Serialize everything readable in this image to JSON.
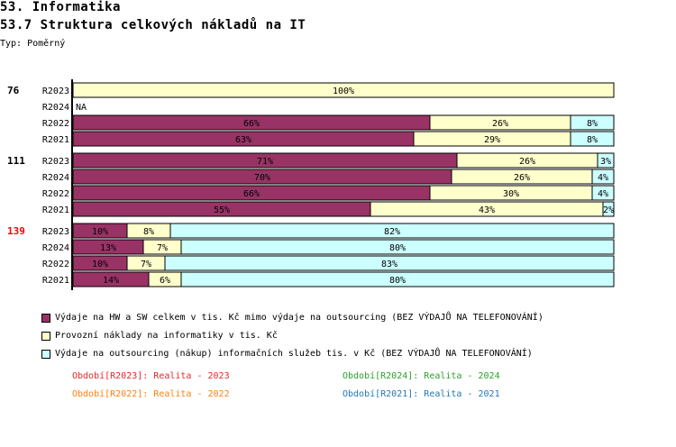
{
  "header": {
    "section": "53. Informatika",
    "title": "53.7 Struktura celkových nákladů na IT",
    "type": "Typ: Poměrný"
  },
  "chart_data": {
    "type": "bar",
    "stacked": "percent",
    "orientation": "horizontal",
    "colors": [
      "#993366",
      "#ffffcc",
      "#ccffff"
    ],
    "series_names": [
      "Výdaje na HW a SW celkem v tis. Kč mimo výdaje na outsourcing (BEZ VÝDAJŮ NA TELEFONOVÁNÍ)",
      "Provozní náklady na informatiky v tis. Kč",
      "Výdaje na outsourcing (nákup) informačních služeb tis. v Kč (BEZ VÝDAJŮ NA TELEFONOVÁNÍ)"
    ],
    "groups": [
      {
        "label": "76",
        "label_color": "#000000",
        "rows": [
          {
            "period": "R2023",
            "values": [
              0,
              100,
              0
            ]
          },
          {
            "period": "R2024",
            "values": null,
            "text": "NA"
          },
          {
            "period": "R2022",
            "values": [
              66,
              26,
              8
            ]
          },
          {
            "period": "R2021",
            "values": [
              63,
              29,
              8
            ]
          }
        ]
      },
      {
        "label": "111",
        "label_color": "#000000",
        "rows": [
          {
            "period": "R2023",
            "values": [
              71,
              26,
              3
            ]
          },
          {
            "period": "R2024",
            "values": [
              70,
              26,
              4
            ]
          },
          {
            "period": "R2022",
            "values": [
              66,
              30,
              4
            ]
          },
          {
            "period": "R2021",
            "values": [
              55,
              43,
              2
            ]
          }
        ]
      },
      {
        "label": "139",
        "label_color": "#ff0000",
        "rows": [
          {
            "period": "R2023",
            "values": [
              10,
              8,
              82
            ]
          },
          {
            "period": "R2024",
            "values": [
              13,
              7,
              80
            ]
          },
          {
            "period": "R2022",
            "values": [
              10,
              7,
              83
            ]
          },
          {
            "period": "R2021",
            "values": [
              14,
              6,
              80
            ]
          }
        ]
      }
    ]
  },
  "periods": [
    {
      "text": "Období[R2023]: Realita - 2023",
      "color": "#e8262b"
    },
    {
      "text": "Období[R2024]: Realita - 2024",
      "color": "#2ca02c"
    },
    {
      "text": "Období[R2022]: Realita - 2022",
      "color": "#ff7f0e"
    },
    {
      "text": "Období[R2021]: Realita - 2021",
      "color": "#1f77b4"
    }
  ]
}
